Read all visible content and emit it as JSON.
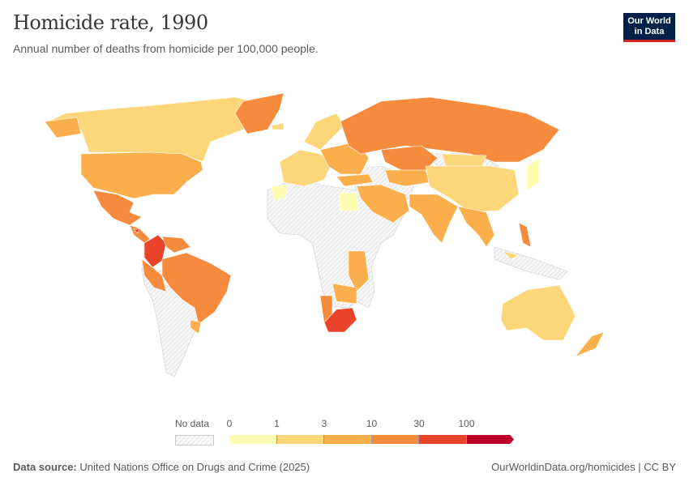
{
  "header": {
    "title": "Homicide rate, 1990",
    "subtitle": "Annual number of deaths from homicide per 100,000 people.",
    "logo": "Our World in Data"
  },
  "legend": {
    "no_data_label": "No data",
    "ticks": [
      "0",
      "1",
      "3",
      "10",
      "30",
      "100"
    ],
    "colors": [
      "#fefcb2",
      "#fdd67a",
      "#fbae4c",
      "#f78b3d",
      "#e9432a",
      "#be0128"
    ],
    "no_data_color": "#eeeeee"
  },
  "map_bins": {
    "canada": 1,
    "usa": 2,
    "mexico": 3,
    "central_america": 3,
    "honduras": 4,
    "colombia": 4,
    "venezuela": 3,
    "brazil": 3,
    "peru": 3,
    "uruguay": 2,
    "greenland": 3,
    "iceland": 1,
    "scandinavia": 1,
    "western_europe": 1,
    "eastern_europe": 2,
    "russia": 3,
    "kazakhstan": 3,
    "central_asia": 2,
    "turkey": 2,
    "middle_east": 2,
    "egypt": 0,
    "morocco": 0,
    "china": 1,
    "mongolia": 1,
    "india": 2,
    "southeast_asia": 2,
    "philippines": 3,
    "japan": 0,
    "indonesia_part": 1,
    "australia": 1,
    "new_zealand": 2,
    "south_africa": 4,
    "namibia": 3,
    "southern_africa": 2,
    "east_africa": 2
  },
  "footer": {
    "source_label": "Data source:",
    "source": "United Nations Office on Drugs and Crime (2025)",
    "link": "OurWorldinData.org/homicides | CC BY"
  }
}
